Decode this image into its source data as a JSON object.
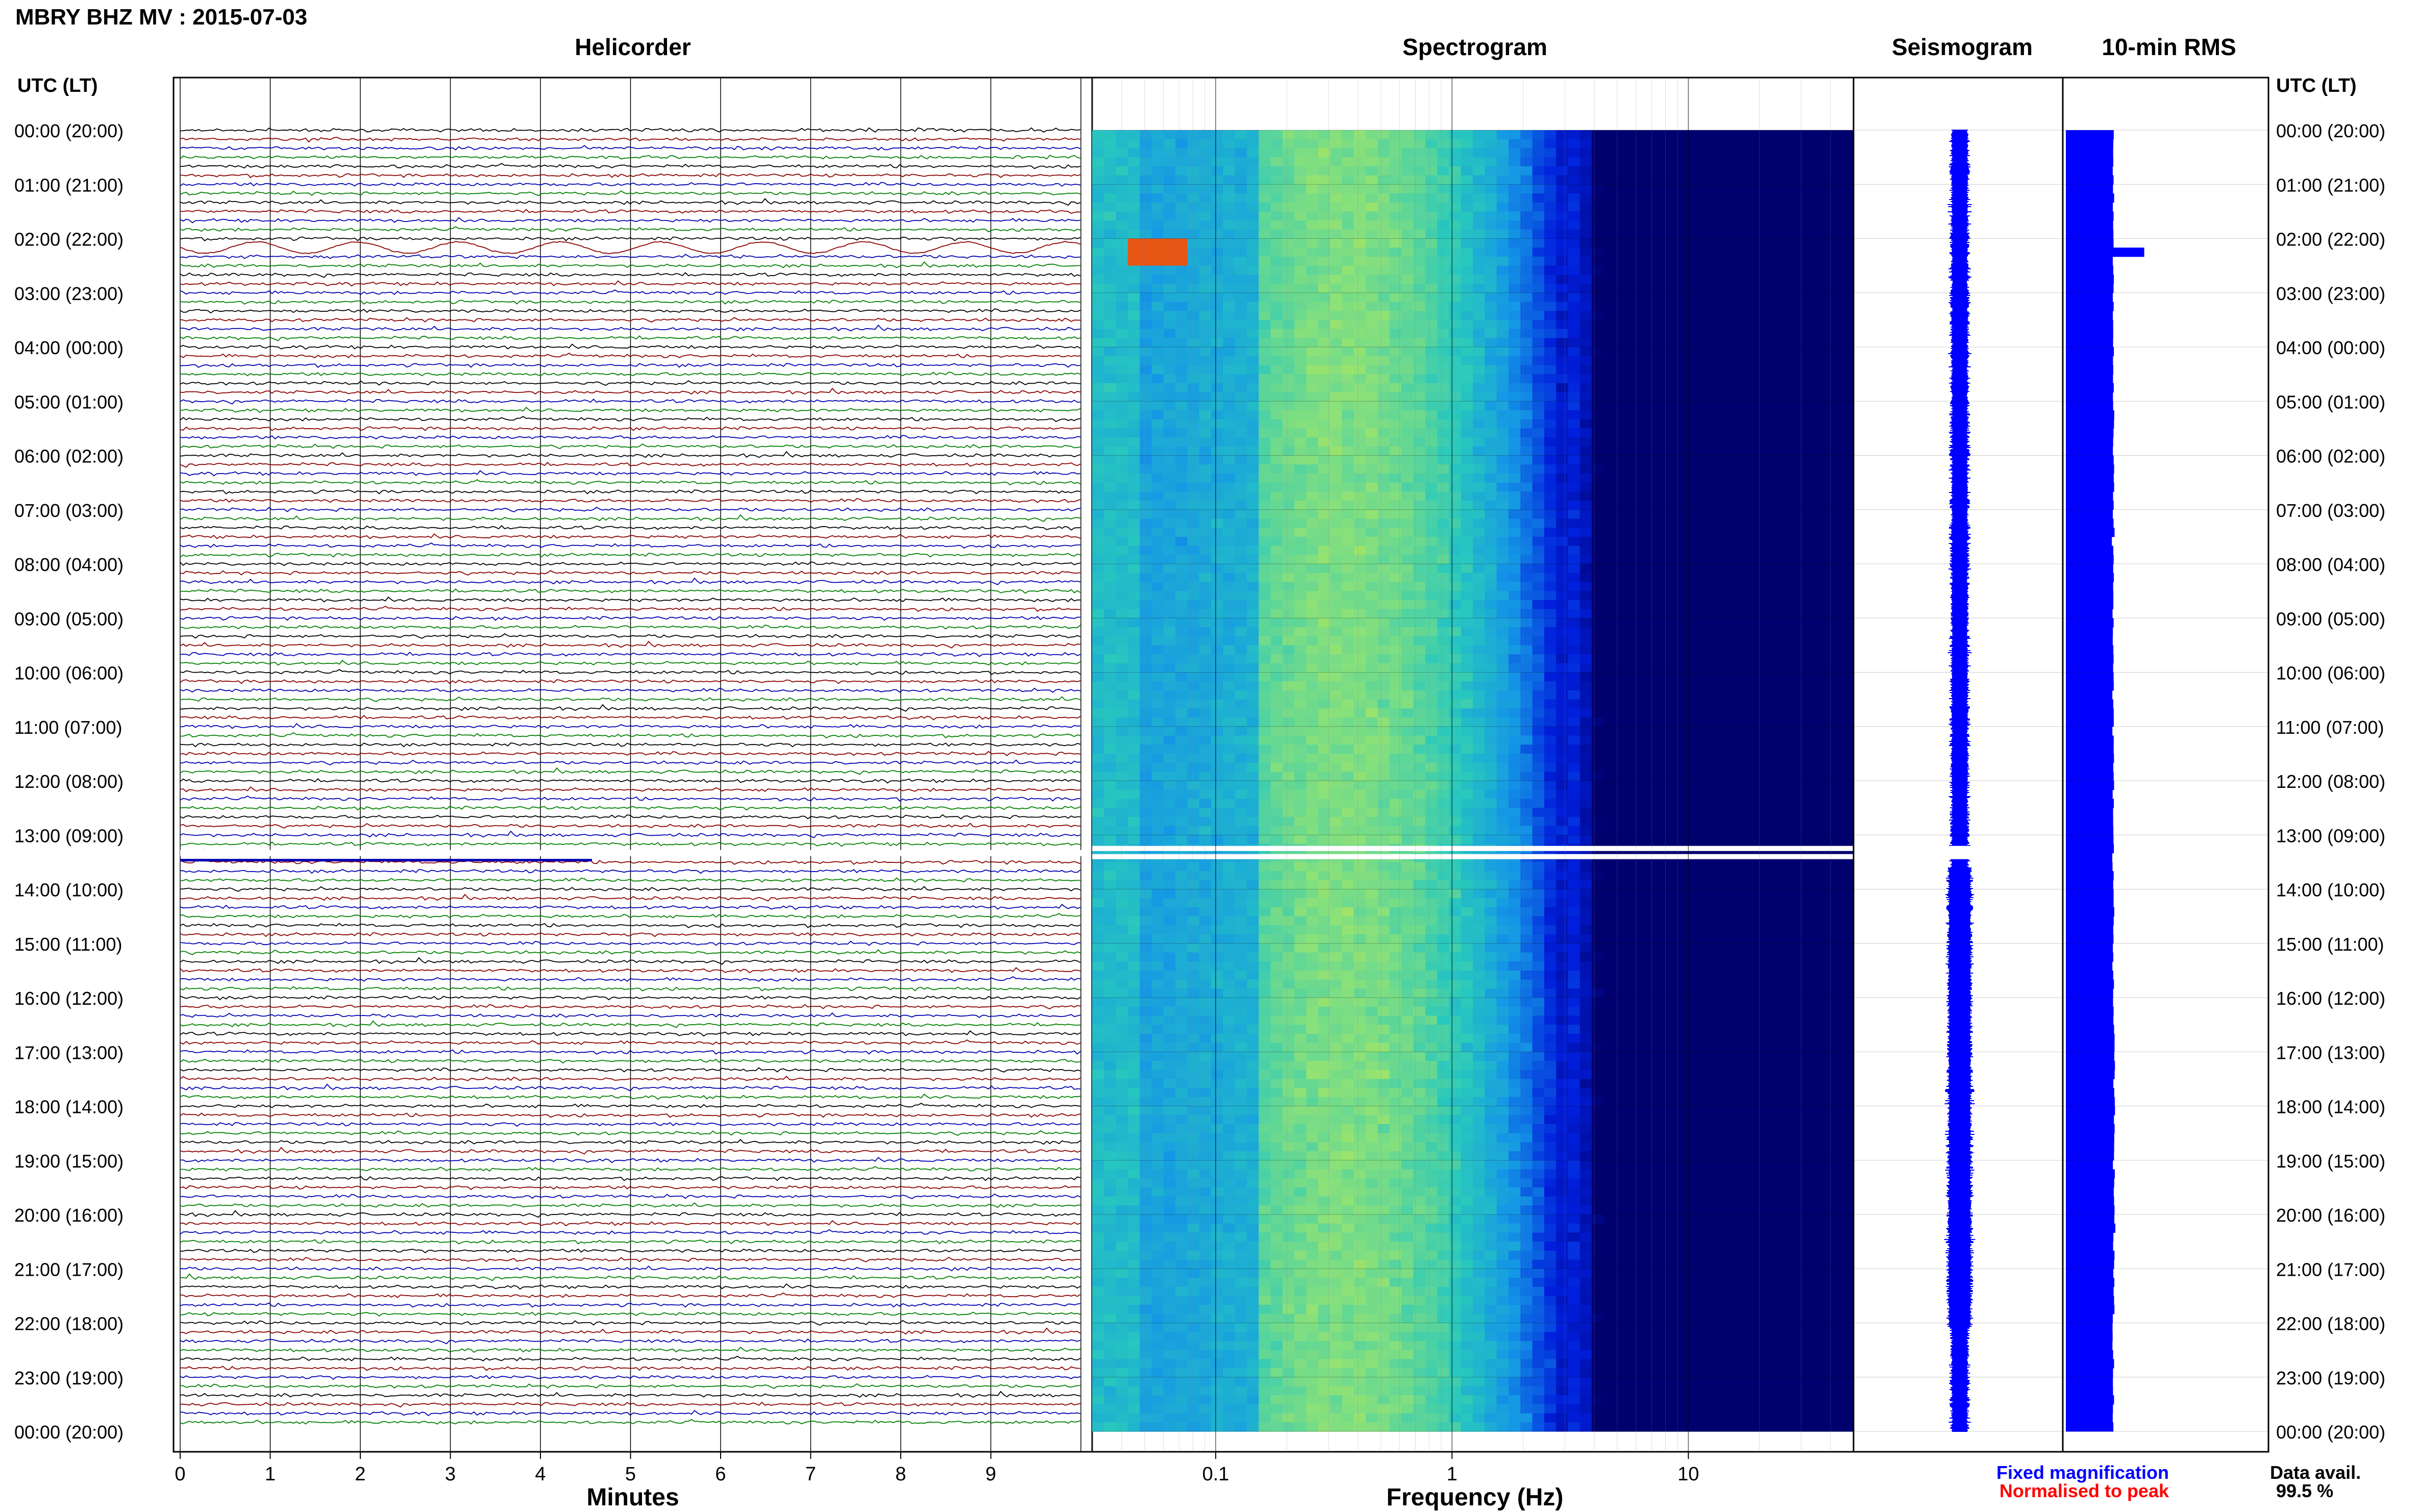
{
  "header": {
    "title": "MBRY BHZ MV : 2015-07-03"
  },
  "panels": {
    "helicorder": "Helicorder",
    "spectrogram": "Spectrogram",
    "seismogram": "Seismogram",
    "rms": "10-min RMS"
  },
  "time_axis": {
    "left_header": "UTC (LT)",
    "right_header": "UTC (LT)",
    "labels": [
      "00:00 (20:00)",
      "01:00 (21:00)",
      "02:00 (22:00)",
      "03:00 (23:00)",
      "04:00 (00:00)",
      "05:00 (01:00)",
      "06:00 (02:00)",
      "07:00 (03:00)",
      "08:00 (04:00)",
      "09:00 (05:00)",
      "10:00 (06:00)",
      "11:00 (07:00)",
      "12:00 (08:00)",
      "13:00 (09:00)",
      "14:00 (10:00)",
      "15:00 (11:00)",
      "16:00 (12:00)",
      "17:00 (13:00)",
      "18:00 (14:00)",
      "19:00 (15:00)",
      "20:00 (16:00)",
      "21:00 (17:00)",
      "22:00 (18:00)",
      "23:00 (19:00)",
      "00:00 (20:00)"
    ]
  },
  "x_axes": {
    "minutes_label": "Minutes",
    "minutes_ticks": [
      "0",
      "1",
      "2",
      "3",
      "4",
      "5",
      "6",
      "7",
      "8",
      "9"
    ],
    "frequency_label": "Frequency (Hz)",
    "frequency_ticks": [
      "0.1",
      "1",
      "10"
    ]
  },
  "legend": {
    "fixed": "Fixed magnification",
    "normalised": "Normalised to peak",
    "fixed_color": "#0000ff",
    "normalised_color": "#ff0000"
  },
  "data_avail": {
    "label": "Data avail.",
    "value": "99.5 %"
  },
  "colors": {
    "trace_cycle": [
      "#000000",
      "#8b0000",
      "#0000b4",
      "#008000"
    ],
    "rms_bar": "#0000ff",
    "seismogram": "#0000ff"
  },
  "chart_data": {
    "type": "heatmap",
    "panels": [
      "Helicorder",
      "Spectrogram",
      "Seismogram",
      "10-min RMS"
    ],
    "time_range_utc": [
      "00:00",
      "24:00"
    ],
    "helicorder": {
      "minutes_per_line": 10,
      "lines": 144,
      "xlim_minutes": [
        0,
        10
      ],
      "events": [
        {
          "time_utc": "02:10",
          "description": "large amplitude long-period oscillation"
        }
      ],
      "gaps_utc": [
        "13:10",
        "13:20"
      ]
    },
    "spectrogram": {
      "x_scale": "log",
      "xlim_hz": [
        0.03,
        50
      ],
      "peak_band_hz": [
        0.2,
        0.6
      ],
      "events": [
        {
          "time_utc": "02:10",
          "freq_hz": [
            0.05,
            0.08
          ]
        }
      ]
    },
    "rms_10min": {
      "bin_minutes": 10,
      "baseline": 0.52,
      "spike": {
        "time_utc": "02:10",
        "value": 0.86
      }
    }
  }
}
